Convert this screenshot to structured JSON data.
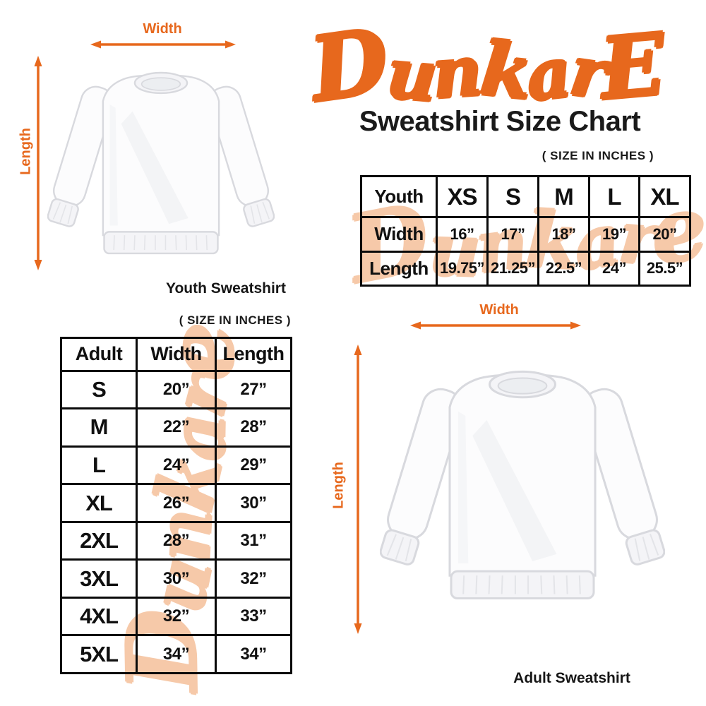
{
  "brand": {
    "logo_text": "DunkarE",
    "title": "Sweatshirt Size Chart",
    "size_note": "( SIZE IN INCHES )"
  },
  "watermark": {
    "text": "Dunkare"
  },
  "colors": {
    "accent_orange": "#e7681d",
    "watermark_peach": "#f6c9a9",
    "ink": "#141414"
  },
  "youth_figure": {
    "width_label": "Width",
    "length_label": "Length",
    "caption": "Youth Sweatshirt"
  },
  "adult_figure": {
    "width_label": "Width",
    "length_label": "Length",
    "caption": "Adult Sweatshirt"
  },
  "youth_table": {
    "header": [
      "Youth",
      "XS",
      "S",
      "M",
      "L",
      "XL"
    ],
    "rows": [
      {
        "label": "Width",
        "values": [
          "16”",
          "17”",
          "18”",
          "19”",
          "20”"
        ]
      },
      {
        "label": "Length",
        "values": [
          "19.75”",
          "21.25”",
          "22.5”",
          "24”",
          "25.5”"
        ]
      }
    ]
  },
  "adult_table": {
    "size_note": "( SIZE IN INCHES )",
    "header": [
      "Adult",
      "Width",
      "Length"
    ],
    "rows": [
      {
        "size": "S",
        "width": "20”",
        "length": "27”"
      },
      {
        "size": "M",
        "width": "22”",
        "length": "28”"
      },
      {
        "size": "L",
        "width": "24”",
        "length": "29”"
      },
      {
        "size": "XL",
        "width": "26”",
        "length": "30”"
      },
      {
        "size": "2XL",
        "width": "28”",
        "length": "31”"
      },
      {
        "size": "3XL",
        "width": "30”",
        "length": "32”"
      },
      {
        "size": "4XL",
        "width": "32”",
        "length": "33”"
      },
      {
        "size": "5XL",
        "width": "34”",
        "length": "34”"
      }
    ]
  }
}
